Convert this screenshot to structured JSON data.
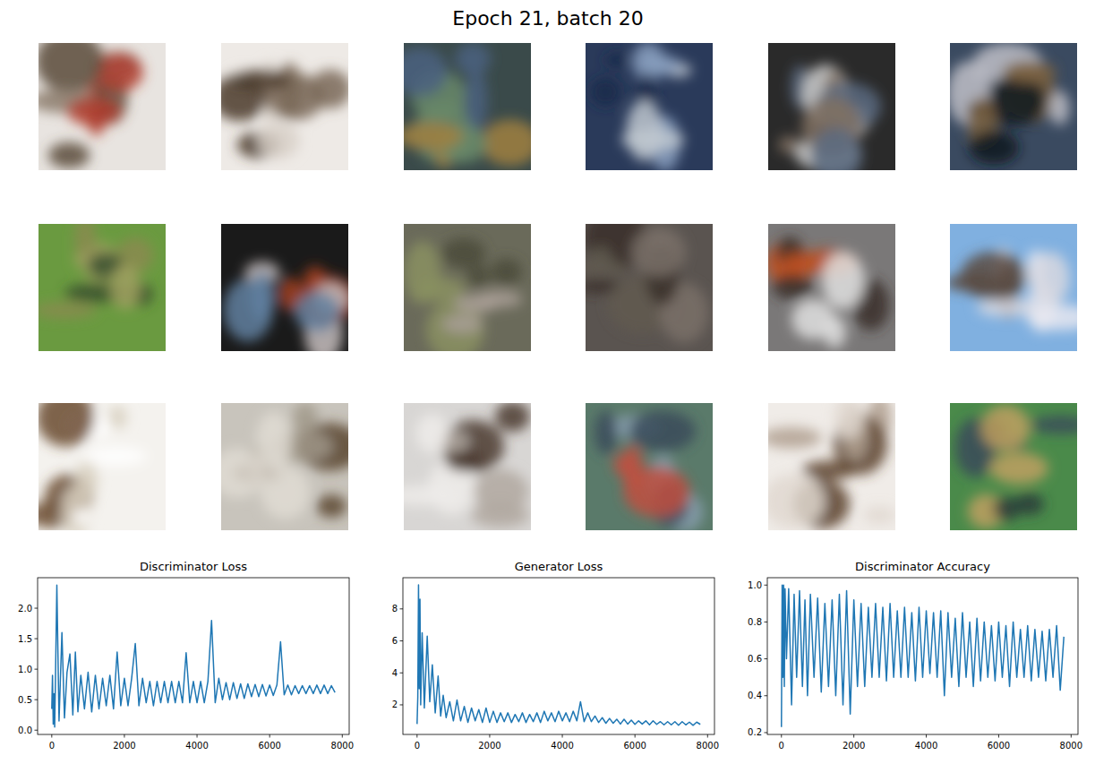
{
  "title": "Epoch 21, batch 20",
  "chart_data": [
    {
      "type": "line",
      "title": "Discriminator Loss",
      "x": [
        0,
        20,
        40,
        60,
        80,
        100,
        140,
        200,
        280,
        350,
        420,
        500,
        580,
        650,
        720,
        800,
        900,
        1000,
        1100,
        1200,
        1300,
        1400,
        1500,
        1600,
        1700,
        1800,
        1900,
        2000,
        2100,
        2200,
        2300,
        2400,
        2500,
        2600,
        2700,
        2800,
        2900,
        3000,
        3100,
        3200,
        3300,
        3400,
        3500,
        3600,
        3700,
        3800,
        3900,
        4000,
        4100,
        4200,
        4300,
        4400,
        4500,
        4600,
        4700,
        4800,
        4900,
        5000,
        5100,
        5200,
        5300,
        5400,
        5500,
        5600,
        5700,
        5800,
        5900,
        6000,
        6100,
        6200,
        6300,
        6400,
        6500,
        6600,
        6700,
        6800,
        6900,
        7000,
        7100,
        7200,
        7300,
        7400,
        7500,
        7600,
        7700,
        7800
      ],
      "series": [
        {
          "color": "#1f77b4",
          "values": [
            0.35,
            0.9,
            0.1,
            0.6,
            0.05,
            0.75,
            2.38,
            0.15,
            1.6,
            0.2,
            0.95,
            1.25,
            0.25,
            1.28,
            0.3,
            0.9,
            0.35,
            0.95,
            0.3,
            0.9,
            0.35,
            0.85,
            0.4,
            0.9,
            0.35,
            1.28,
            0.4,
            0.85,
            0.4,
            0.85,
            1.42,
            0.4,
            0.85,
            0.45,
            0.8,
            0.4,
            0.8,
            0.45,
            0.8,
            0.45,
            0.8,
            0.45,
            0.8,
            0.45,
            1.27,
            0.45,
            0.8,
            0.45,
            0.8,
            0.45,
            0.8,
            1.8,
            0.45,
            0.85,
            0.5,
            0.78,
            0.5,
            0.78,
            0.52,
            0.76,
            0.52,
            0.76,
            0.55,
            0.75,
            0.55,
            0.75,
            0.56,
            0.74,
            0.57,
            0.74,
            1.45,
            0.58,
            0.74,
            0.58,
            0.73,
            0.6,
            0.73,
            0.6,
            0.73,
            0.6,
            0.74,
            0.6,
            0.74,
            0.6,
            0.73,
            0.62
          ]
        }
      ],
      "xlim": [
        -390,
        8190
      ],
      "xticks": [
        0,
        2000,
        4000,
        6000,
        8000
      ],
      "ylim": [
        -0.07,
        2.5
      ],
      "yticks": [
        {
          "value": 0,
          "label": "0.0"
        },
        0.5,
        {
          "value": 1,
          "label": "1.0"
        },
        1.5,
        {
          "value": 2,
          "label": "2.0"
        }
      ]
    },
    {
      "type": "line",
      "title": "Generator Loss",
      "x": [
        0,
        20,
        40,
        60,
        80,
        100,
        140,
        200,
        280,
        350,
        420,
        500,
        580,
        650,
        720,
        800,
        900,
        1000,
        1100,
        1200,
        1300,
        1400,
        1500,
        1600,
        1700,
        1800,
        1900,
        2000,
        2100,
        2200,
        2300,
        2400,
        2500,
        2600,
        2700,
        2800,
        2900,
        3000,
        3100,
        3200,
        3300,
        3400,
        3500,
        3600,
        3700,
        3800,
        3900,
        4000,
        4100,
        4200,
        4300,
        4400,
        4500,
        4600,
        4700,
        4800,
        4900,
        5000,
        5100,
        5200,
        5300,
        5400,
        5500,
        5600,
        5700,
        5800,
        5900,
        6000,
        6100,
        6200,
        6300,
        6400,
        6500,
        6600,
        6700,
        6800,
        6900,
        7000,
        7100,
        7200,
        7300,
        7400,
        7500,
        7600,
        7700,
        7800
      ],
      "series": [
        {
          "color": "#1f77b4",
          "values": [
            0.8,
            2.5,
            9.5,
            3,
            8.6,
            2,
            6.5,
            1.8,
            6.3,
            2.2,
            4.5,
            1.5,
            3.8,
            1.3,
            2.6,
            1.2,
            2.2,
            1.0,
            2.3,
            1.0,
            1.9,
            0.9,
            1.8,
            1.0,
            1.7,
            0.9,
            1.8,
            0.9,
            1.6,
            0.9,
            1.5,
            0.95,
            1.5,
            0.9,
            1.4,
            0.95,
            1.5,
            0.9,
            1.4,
            0.95,
            1.5,
            0.9,
            1.6,
            1.0,
            1.5,
            0.95,
            1.6,
            1.0,
            1.5,
            0.95,
            1.6,
            1.0,
            2.2,
            0.95,
            1.5,
            0.95,
            1.3,
            0.9,
            1.2,
            0.85,
            1.15,
            0.85,
            1.1,
            0.8,
            1.1,
            0.8,
            1.05,
            0.78,
            1.0,
            0.8,
            1.0,
            0.75,
            1.0,
            0.78,
            0.95,
            0.75,
            0.95,
            0.75,
            0.95,
            0.72,
            0.95,
            0.75,
            0.92,
            0.72,
            0.92,
            0.78
          ]
        }
      ],
      "xlim": [
        -390,
        8190
      ],
      "xticks": [
        0,
        2000,
        4000,
        6000,
        8000
      ],
      "ylim": [
        0.15,
        9.95
      ],
      "yticks": [
        2,
        4,
        6,
        8
      ]
    },
    {
      "type": "line",
      "title": "Discriminator Accuracy",
      "x": [
        0,
        20,
        40,
        60,
        80,
        100,
        140,
        200,
        280,
        350,
        420,
        500,
        580,
        650,
        720,
        800,
        900,
        1000,
        1100,
        1200,
        1300,
        1400,
        1500,
        1600,
        1700,
        1800,
        1900,
        2000,
        2100,
        2200,
        2300,
        2400,
        2500,
        2600,
        2700,
        2800,
        2900,
        3000,
        3100,
        3200,
        3300,
        3400,
        3500,
        3600,
        3700,
        3800,
        3900,
        4000,
        4100,
        4200,
        4300,
        4400,
        4500,
        4600,
        4700,
        4800,
        4900,
        5000,
        5100,
        5200,
        5300,
        5400,
        5500,
        5600,
        5700,
        5800,
        5900,
        6000,
        6100,
        6200,
        6300,
        6400,
        6500,
        6600,
        6700,
        6800,
        6900,
        7000,
        7100,
        7200,
        7300,
        7400,
        7500,
        7600,
        7700,
        7800
      ],
      "series": [
        {
          "color": "#1f77b4",
          "values": [
            0.23,
            1.0,
            0.5,
            1.0,
            0.45,
            0.98,
            0.6,
            0.98,
            0.35,
            0.95,
            0.5,
            0.97,
            0.45,
            0.92,
            0.4,
            0.95,
            0.5,
            0.93,
            0.42,
            0.9,
            0.45,
            0.92,
            0.4,
            0.95,
            0.35,
            0.97,
            0.3,
            0.92,
            0.45,
            0.9,
            0.45,
            0.88,
            0.5,
            0.9,
            0.5,
            0.88,
            0.48,
            0.9,
            0.5,
            0.86,
            0.5,
            0.88,
            0.5,
            0.85,
            0.48,
            0.88,
            0.5,
            0.86,
            0.52,
            0.85,
            0.5,
            0.86,
            0.4,
            0.85,
            0.5,
            0.82,
            0.45,
            0.85,
            0.5,
            0.8,
            0.45,
            0.82,
            0.48,
            0.8,
            0.5,
            0.78,
            0.48,
            0.8,
            0.5,
            0.78,
            0.45,
            0.8,
            0.5,
            0.76,
            0.5,
            0.78,
            0.48,
            0.76,
            0.5,
            0.75,
            0.48,
            0.76,
            0.5,
            0.78,
            0.43,
            0.72
          ]
        }
      ],
      "xlim": [
        -390,
        8190
      ],
      "xticks": [
        0,
        2000,
        4000,
        6000,
        8000
      ],
      "ylim": [
        0.19,
        1.04
      ],
      "yticks": [
        0.2,
        0.4,
        0.6,
        0.8,
        {
          "value": 1,
          "label": "1.0"
        }
      ]
    }
  ]
}
